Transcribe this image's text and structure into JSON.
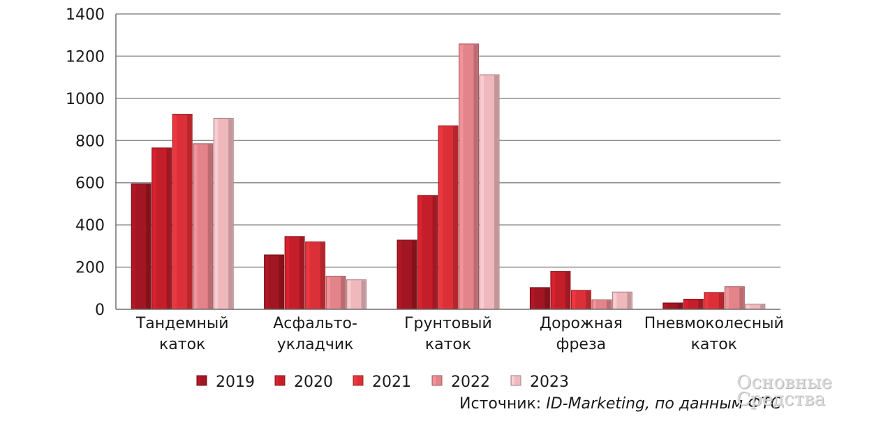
{
  "chart_data": {
    "type": "bar",
    "categories": [
      [
        "Тандемный",
        "каток"
      ],
      [
        "Асфальто-",
        "укладчик"
      ],
      [
        "Грунтовый",
        "каток"
      ],
      [
        "Дорожная",
        "фреза"
      ],
      [
        "Пневмоколесный",
        "каток"
      ]
    ],
    "series": [
      {
        "name": "2019",
        "color": "#a11622",
        "values": [
          595,
          258,
          328,
          103,
          30
        ]
      },
      {
        "name": "2020",
        "color": "#c41e2a",
        "values": [
          765,
          345,
          540,
          180,
          48
        ]
      },
      {
        "name": "2021",
        "color": "#dc3038",
        "values": [
          925,
          320,
          870,
          90,
          80
        ]
      },
      {
        "name": "2022",
        "color": "#e3848a",
        "values": [
          785,
          157,
          1258,
          45,
          107
        ]
      },
      {
        "name": "2023",
        "color": "#efb8bc",
        "values": [
          905,
          140,
          1112,
          82,
          25
        ]
      }
    ],
    "ylim": [
      0,
      1400
    ],
    "yticks": [
      0,
      200,
      400,
      600,
      800,
      1000,
      1200,
      1400
    ],
    "grid": true,
    "legend_position": "bottom"
  },
  "source": {
    "prefix": "Источник: ",
    "text": "ID-Marketing, по данным ФТС"
  },
  "watermark": {
    "line1": "Основные",
    "line2": "Средства"
  }
}
